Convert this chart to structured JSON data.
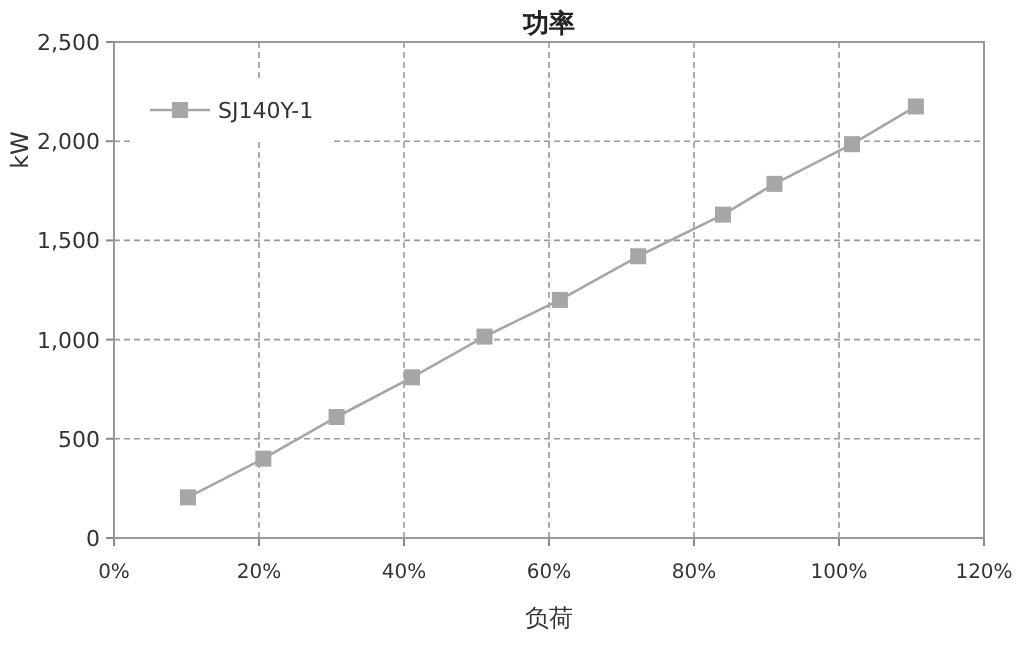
{
  "chart_data": {
    "type": "line",
    "title": "功率",
    "xlabel": "负荷",
    "ylabel": "kW",
    "x": [
      10.2,
      20.6,
      30.7,
      41.1,
      51.1,
      61.5,
      72.3,
      84.0,
      91.1,
      101.8,
      110.6
    ],
    "series": [
      {
        "name": "SJ140Y-1",
        "color": "#a6a6a6",
        "values": [
          205,
          400,
          610,
          810,
          1015,
          1200,
          1420,
          1630,
          1785,
          1985,
          2175
        ]
      }
    ],
    "xlim": [
      0,
      120
    ],
    "xticks": [
      {
        "value": 0,
        "label": "0%"
      },
      {
        "value": 20,
        "label": "20%"
      },
      {
        "value": 40,
        "label": "40%"
      },
      {
        "value": 60,
        "label": "60%"
      },
      {
        "value": 80,
        "label": "80%"
      },
      {
        "value": 100,
        "label": "100%"
      },
      {
        "value": 120,
        "label": "120%"
      }
    ],
    "ylim": [
      0,
      2500
    ],
    "yticks": [
      {
        "value": 0,
        "label": "0"
      },
      {
        "value": 500,
        "label": "500"
      },
      {
        "value": 1000,
        "label": "1,000"
      },
      {
        "value": 1500,
        "label": "1,500"
      },
      {
        "value": 2000,
        "label": "2,000"
      },
      {
        "value": 2500,
        "label": "2,500"
      }
    ],
    "grid": true,
    "legend": "top left",
    "marker": "square",
    "line_style": "solid"
  }
}
